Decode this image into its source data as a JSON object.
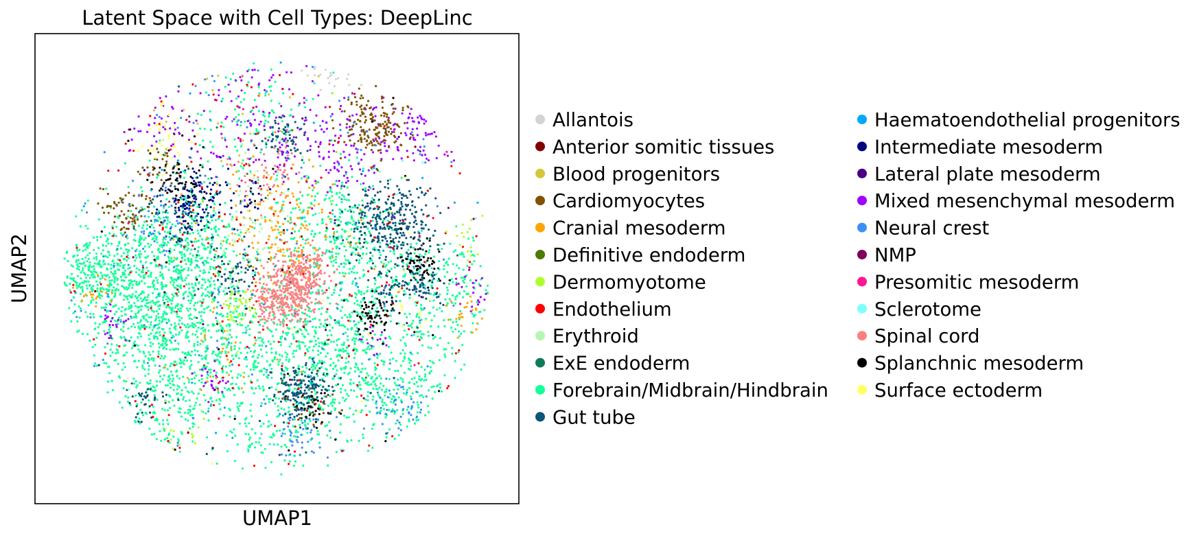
{
  "chart_data": {
    "type": "scatter",
    "title": "Latent Space with Cell Types: DeepLinc",
    "xlabel": "UMAP1",
    "ylabel": "UMAP2",
    "xticks": [],
    "yticks": [],
    "grid": false,
    "legend_placement": "right, two columns, outside plot",
    "xlim": [
      0,
      1
    ],
    "ylim": [
      0,
      1
    ],
    "point_count_approx": 9000,
    "series": [
      {
        "name": "Allantois",
        "color": "#d3d3d3",
        "n": 20,
        "clusters": [
          [
            0.62,
            0.95,
            0.04,
            0.6
          ]
        ]
      },
      {
        "name": "Anterior somitic tissues",
        "color": "#800000",
        "n": 10,
        "clusters": [
          [
            0.5,
            0.5,
            0.35,
            1
          ]
        ]
      },
      {
        "name": "Blood progenitors",
        "color": "#d4c83a",
        "n": 30,
        "clusters": [
          [
            0.42,
            0.78,
            0.12,
            1
          ]
        ]
      },
      {
        "name": "Cardiomyocytes",
        "color": "#7f5300",
        "n": 300,
        "clusters": [
          [
            0.7,
            0.81,
            0.035,
            3
          ],
          [
            0.19,
            0.62,
            0.025,
            1.2
          ],
          [
            0.25,
            0.72,
            0.02,
            0.6
          ],
          [
            0.57,
            0.22,
            0.03,
            0.4
          ]
        ]
      },
      {
        "name": "Cranial mesoderm",
        "color": "#ffa500",
        "n": 250,
        "clusters": [
          [
            0.5,
            0.6,
            0.07,
            3
          ],
          [
            0.13,
            0.45,
            0.02,
            0.5
          ],
          [
            0.89,
            0.4,
            0.02,
            0.4
          ],
          [
            0.4,
            0.3,
            0.05,
            0.5
          ]
        ]
      },
      {
        "name": "Definitive endoderm",
        "color": "#4f7a00",
        "n": 10,
        "clusters": [
          [
            0.45,
            0.5,
            0.3,
            1
          ]
        ]
      },
      {
        "name": "Dermomyotome",
        "color": "#adff2f",
        "n": 80,
        "clusters": [
          [
            0.42,
            0.42,
            0.02,
            1.5
          ],
          [
            0.3,
            0.16,
            0.03,
            0.6
          ],
          [
            0.91,
            0.58,
            0.03,
            0.5
          ]
        ]
      },
      {
        "name": "Endothelium",
        "color": "#ff0000",
        "n": 200,
        "clusters": [
          [
            0.5,
            0.5,
            0.32,
            1
          ]
        ]
      },
      {
        "name": "Erythroid",
        "color": "#b3f7b3",
        "n": 70,
        "clusters": [
          [
            0.47,
            0.68,
            0.05,
            1
          ],
          [
            0.43,
            0.57,
            0.04,
            1
          ]
        ]
      },
      {
        "name": "ExE endoderm",
        "color": "#0f7a5a",
        "n": 15,
        "clusters": [
          [
            0.5,
            0.5,
            0.3,
            1
          ]
        ]
      },
      {
        "name": "Forebrain/Midbrain/Hindbrain",
        "color": "#15ff9a",
        "n": 3600,
        "clusters": [
          [
            0.22,
            0.45,
            0.08,
            5
          ],
          [
            0.33,
            0.33,
            0.08,
            4
          ],
          [
            0.6,
            0.35,
            0.09,
            5
          ],
          [
            0.75,
            0.25,
            0.07,
            2
          ],
          [
            0.31,
            0.55,
            0.07,
            3
          ],
          [
            0.62,
            0.6,
            0.06,
            2
          ],
          [
            0.85,
            0.45,
            0.06,
            1.5
          ],
          [
            0.5,
            0.2,
            0.08,
            2
          ],
          [
            0.12,
            0.5,
            0.04,
            1.5
          ],
          [
            0.45,
            0.82,
            0.06,
            1
          ],
          [
            0.7,
            0.5,
            0.05,
            1
          ],
          [
            0.26,
            0.2,
            0.05,
            1
          ]
        ]
      },
      {
        "name": "Gut tube",
        "color": "#0d557a",
        "n": 900,
        "clusters": [
          [
            0.73,
            0.6,
            0.045,
            4
          ],
          [
            0.55,
            0.24,
            0.03,
            2.5
          ],
          [
            0.3,
            0.63,
            0.04,
            1
          ],
          [
            0.41,
            0.49,
            0.03,
            0.8
          ],
          [
            0.8,
            0.47,
            0.02,
            0.8
          ],
          [
            0.51,
            0.78,
            0.025,
            0.8
          ],
          [
            0.73,
            0.46,
            0.02,
            0.6
          ],
          [
            0.23,
            0.22,
            0.02,
            0.3
          ],
          [
            0.5,
            0.5,
            0.3,
            0.6
          ]
        ]
      },
      {
        "name": "Haematoendothelial progenitors",
        "color": "#00a8ff",
        "n": 40,
        "clusters": [
          [
            0.5,
            0.5,
            0.3,
            1
          ]
        ]
      },
      {
        "name": "Intermediate mesoderm",
        "color": "#000080",
        "n": 120,
        "clusters": [
          [
            0.33,
            0.65,
            0.035,
            2
          ],
          [
            0.44,
            0.65,
            0.02,
            0.5
          ]
        ]
      },
      {
        "name": "Lateral plate mesoderm",
        "color": "#4b0082",
        "n": 15,
        "clusters": [
          [
            0.5,
            0.5,
            0.3,
            1
          ]
        ]
      },
      {
        "name": "Mixed mesenchymal mesoderm",
        "color": "#a000ff",
        "n": 420,
        "clusters": [
          [
            0.63,
            0.75,
            0.06,
            3
          ],
          [
            0.45,
            0.82,
            0.07,
            2.5
          ],
          [
            0.8,
            0.8,
            0.04,
            1.5
          ],
          [
            0.26,
            0.8,
            0.04,
            1
          ],
          [
            0.37,
            0.26,
            0.02,
            0.5
          ],
          [
            0.17,
            0.38,
            0.02,
            0.4
          ],
          [
            0.9,
            0.45,
            0.02,
            0.4
          ],
          [
            0.7,
            0.35,
            0.02,
            0.4
          ]
        ]
      },
      {
        "name": "Neural crest",
        "color": "#3c8ff5",
        "n": 300,
        "clusters": [
          [
            0.5,
            0.5,
            0.32,
            3
          ],
          [
            0.76,
            0.21,
            0.03,
            0.8
          ],
          [
            0.27,
            0.6,
            0.03,
            0.7
          ],
          [
            0.55,
            0.15,
            0.03,
            0.5
          ]
        ]
      },
      {
        "name": "NMP",
        "color": "#800060",
        "n": 10,
        "clusters": [
          [
            0.5,
            0.5,
            0.3,
            1
          ]
        ]
      },
      {
        "name": "Presomitic mesoderm",
        "color": "#ff1493",
        "n": 10,
        "clusters": [
          [
            0.5,
            0.5,
            0.3,
            1
          ]
        ]
      },
      {
        "name": "Sclerotome",
        "color": "#80ffff",
        "n": 15,
        "clusters": [
          [
            0.5,
            0.5,
            0.3,
            1
          ]
        ]
      },
      {
        "name": "Spinal cord",
        "color": "#fa8080",
        "n": 620,
        "clusters": [
          [
            0.54,
            0.46,
            0.03,
            4
          ],
          [
            0.5,
            0.43,
            0.03,
            2.5
          ],
          [
            0.56,
            0.51,
            0.025,
            1.5
          ],
          [
            0.48,
            0.7,
            0.04,
            0.8
          ]
        ]
      },
      {
        "name": "Splanchnic mesoderm",
        "color": "#000000",
        "n": 260,
        "clusters": [
          [
            0.7,
            0.4,
            0.02,
            1.2
          ],
          [
            0.8,
            0.51,
            0.02,
            0.9
          ],
          [
            0.3,
            0.69,
            0.03,
            1.2
          ],
          [
            0.58,
            0.2,
            0.02,
            0.4
          ],
          [
            0.5,
            0.5,
            0.3,
            1
          ]
        ]
      },
      {
        "name": "Surface ectoderm",
        "color": "#ffff66",
        "n": 80,
        "clusters": [
          [
            0.27,
            0.78,
            0.03,
            1.5
          ],
          [
            0.78,
            0.43,
            0.02,
            0.4
          ],
          [
            0.5,
            0.5,
            0.3,
            1
          ]
        ]
      }
    ]
  }
}
